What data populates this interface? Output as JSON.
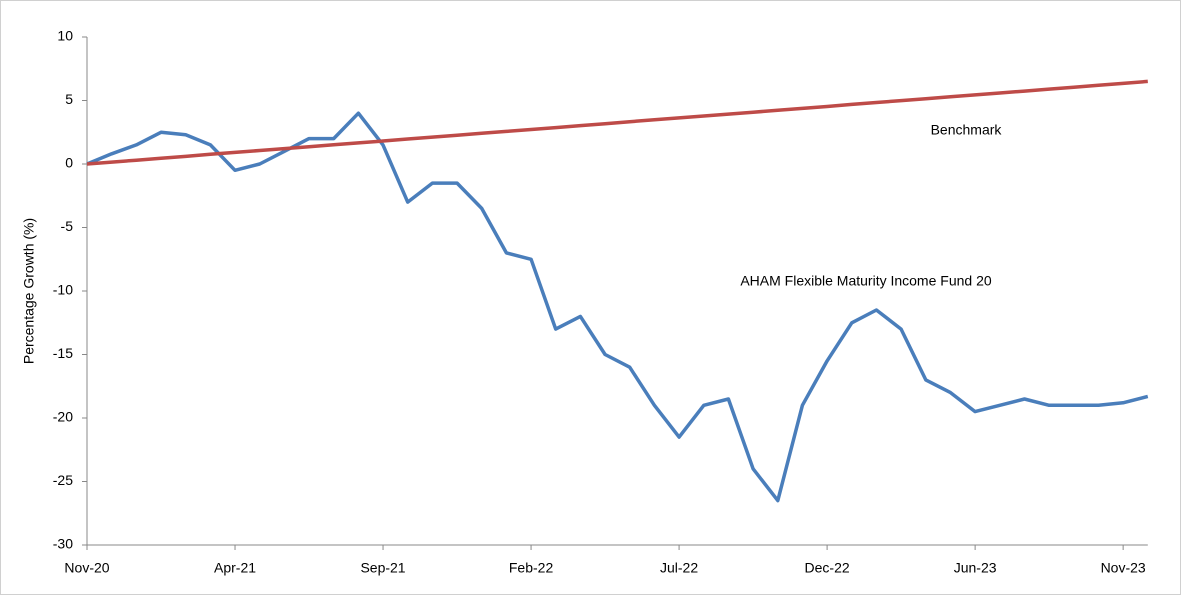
{
  "chart_data": {
    "type": "line",
    "ylabel": "Percentage Growth (%)",
    "categories": [
      "Nov-20",
      null,
      null,
      null,
      null,
      null,
      "Apr-21",
      null,
      null,
      null,
      null,
      null,
      "Sep-21",
      null,
      null,
      null,
      null,
      null,
      "Feb-22",
      null,
      null,
      null,
      null,
      null,
      "Jul-22",
      null,
      null,
      null,
      null,
      null,
      "Dec-22",
      null,
      null,
      null,
      null,
      null,
      "Jun-23",
      null,
      null,
      null,
      null,
      null,
      "Nov-23",
      null
    ],
    "series": [
      {
        "name": "AHAM Flexible Maturity Income Fund 20",
        "color": "#4a7ebb",
        "values": [
          0,
          0.8,
          1.5,
          2.5,
          2.3,
          1.5,
          -0.5,
          0,
          1,
          2,
          2,
          4,
          1.5,
          -3,
          -1.5,
          -1.5,
          -3.5,
          -7,
          -7.5,
          -13,
          -12,
          -15,
          -16,
          -19,
          -21.5,
          -19,
          -18.5,
          -24,
          -26.5,
          -19,
          -15.5,
          -12.5,
          -11.5,
          -13,
          -17,
          -18,
          -19.5,
          -19,
          -18.5,
          -19,
          -19,
          -19,
          -18.8,
          -18.3
        ]
      },
      {
        "name": "Benchmark",
        "color": "#be4b48",
        "values": [
          0,
          0.15,
          0.3,
          0.45,
          0.6,
          0.76,
          0.91,
          1.06,
          1.21,
          1.36,
          1.51,
          1.66,
          1.81,
          1.97,
          2.12,
          2.27,
          2.42,
          2.57,
          2.72,
          2.87,
          3.02,
          3.17,
          3.33,
          3.48,
          3.63,
          3.78,
          3.93,
          4.08,
          4.23,
          4.38,
          4.53,
          4.69,
          4.84,
          4.99,
          5.14,
          5.29,
          5.44,
          5.59,
          5.74,
          5.9,
          6.05,
          6.2,
          6.35,
          6.5
        ]
      }
    ],
    "ylim": [
      -30,
      10
    ],
    "yticks": [
      -30,
      -25,
      -20,
      -15,
      -10,
      -5,
      0,
      5,
      10
    ]
  }
}
